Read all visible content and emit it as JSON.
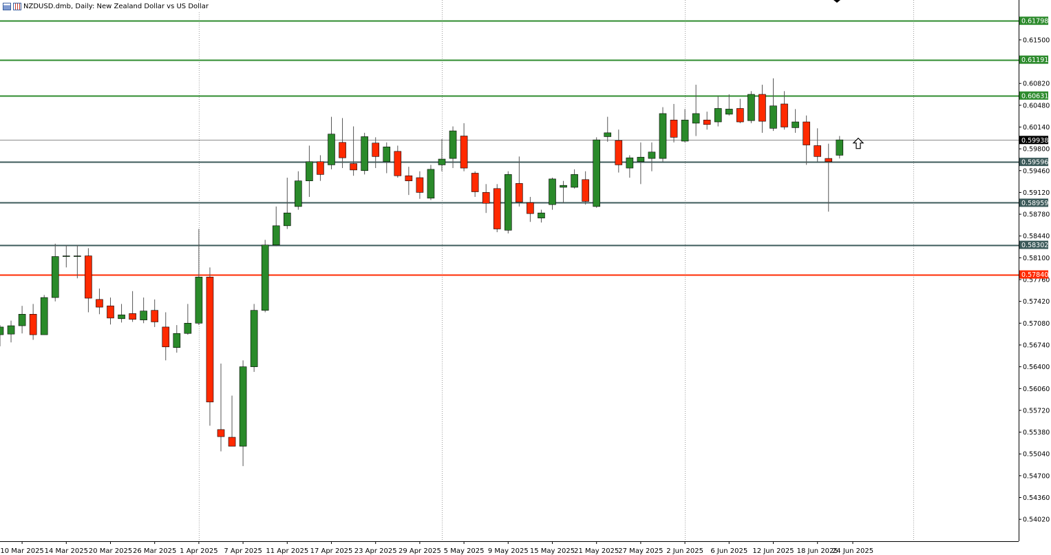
{
  "title": {
    "symbol_icon": "chart-window-icon",
    "symbol_icon2": "chart-bars-icon",
    "text": "NZDUSD.dmb, Daily:  New Zealand Dollar vs US Dollar"
  },
  "chart_data": {
    "type": "candlestick",
    "title": "NZDUSD.dmb, Daily:  New Zealand Dollar vs US Dollar",
    "ylim": [
      0.5385,
      0.6195
    ],
    "grid": "vertical dotted",
    "y_ticks": [
      "0.61798",
      "0.61500",
      "0.61191",
      "0.60820",
      "0.60631",
      "0.60480",
      "0.60140",
      "0.59938",
      "0.59800",
      "0.59596",
      "0.59460",
      "0.59120",
      "0.58959",
      "0.58780",
      "0.58440",
      "0.58302",
      "0.58100",
      "0.57840",
      "0.57760",
      "0.57420",
      "0.57080",
      "0.56740",
      "0.56400",
      "0.56060",
      "0.55720",
      "0.55380",
      "0.55040",
      "0.54700",
      "0.54360",
      "0.54020"
    ],
    "x_labels": [
      "10 Mar 2025",
      "14 Mar 2025",
      "20 Mar 2025",
      "26 Mar 2025",
      "1 Apr 2025",
      "7 Apr 2025",
      "11 Apr 2025",
      "17 Apr 2025",
      "23 Apr 2025",
      "29 Apr 2025",
      "5 May 2025",
      "9 May 2025",
      "15 May 2025",
      "21 May 2025",
      "27 May 2025",
      "2 Jun 2025",
      "6 Jun 2025",
      "12 Jun 2025",
      "18 Jun 2025",
      "24 Jun 2025"
    ],
    "period_separators": [
      "1 Apr 2025",
      "1 May 2025",
      "2 Jun 2025",
      "1 Jul 2025"
    ],
    "current_price": {
      "value": 0.59938,
      "label": "0.59938",
      "color": "#000000"
    },
    "levels": [
      {
        "value": 0.61798,
        "label": "0.61798",
        "color": "#2e8b2e"
      },
      {
        "value": 0.61191,
        "label": "0.61191",
        "color": "#2e8b2e"
      },
      {
        "value": 0.60631,
        "label": "0.60631",
        "color": "#2e8b2e"
      },
      {
        "value": 0.59596,
        "label": "0.59596",
        "color": "#3c5a5a"
      },
      {
        "value": 0.58959,
        "label": "0.58959",
        "color": "#3c5a5a"
      },
      {
        "value": 0.58302,
        "label": "0.58302",
        "color": "#3c5a5a"
      },
      {
        "value": 0.5784,
        "label": "0.57840",
        "color": "#ff2a00"
      }
    ],
    "bull_color": "#2a8a2a",
    "bear_color": "#ff2a00",
    "candles": [
      {
        "d": "6 Mar 2025",
        "o": 0.569,
        "h": 0.5705,
        "l": 0.5672,
        "c": 0.5702
      },
      {
        "d": "7 Mar 2025",
        "o": 0.5691,
        "h": 0.5712,
        "l": 0.5678,
        "c": 0.5704
      },
      {
        "d": "10 Mar 2025",
        "o": 0.5704,
        "h": 0.5735,
        "l": 0.5692,
        "c": 0.5722
      },
      {
        "d": "11 Mar 2025",
        "o": 0.5722,
        "h": 0.5738,
        "l": 0.5682,
        "c": 0.569
      },
      {
        "d": "12 Mar 2025",
        "o": 0.569,
        "h": 0.5752,
        "l": 0.569,
        "c": 0.5748
      },
      {
        "d": "13 Mar 2025",
        "o": 0.5748,
        "h": 0.5832,
        "l": 0.5742,
        "c": 0.5812
      },
      {
        "d": "14 Mar 2025",
        "o": 0.5812,
        "h": 0.583,
        "l": 0.5795,
        "c": 0.5813
      },
      {
        "d": "17 Mar 2025",
        "o": 0.5812,
        "h": 0.583,
        "l": 0.5778,
        "c": 0.5813
      },
      {
        "d": "18 Mar 2025",
        "o": 0.5813,
        "h": 0.5825,
        "l": 0.5725,
        "c": 0.5747
      },
      {
        "d": "19 Mar 2025",
        "o": 0.5745,
        "h": 0.5762,
        "l": 0.5722,
        "c": 0.5733
      },
      {
        "d": "20 Mar 2025",
        "o": 0.5735,
        "h": 0.5748,
        "l": 0.5706,
        "c": 0.5716
      },
      {
        "d": "21 Mar 2025",
        "o": 0.5715,
        "h": 0.5738,
        "l": 0.5709,
        "c": 0.5721
      },
      {
        "d": "24 Mar 2025",
        "o": 0.5723,
        "h": 0.5758,
        "l": 0.571,
        "c": 0.5714
      },
      {
        "d": "25 Mar 2025",
        "o": 0.5713,
        "h": 0.5748,
        "l": 0.5708,
        "c": 0.5727
      },
      {
        "d": "26 Mar 2025",
        "o": 0.5728,
        "h": 0.5745,
        "l": 0.5702,
        "c": 0.571
      },
      {
        "d": "27 Mar 2025",
        "o": 0.5702,
        "h": 0.5725,
        "l": 0.565,
        "c": 0.5671
      },
      {
        "d": "28 Mar 2025",
        "o": 0.567,
        "h": 0.5705,
        "l": 0.5662,
        "c": 0.5692
      },
      {
        "d": "31 Mar 2025",
        "o": 0.5692,
        "h": 0.5738,
        "l": 0.569,
        "c": 0.5708
      },
      {
        "d": "1 Apr 2025",
        "o": 0.5708,
        "h": 0.5855,
        "l": 0.5705,
        "c": 0.578
      },
      {
        "d": "2 Apr 2025",
        "o": 0.578,
        "h": 0.5795,
        "l": 0.5548,
        "c": 0.5585
      },
      {
        "d": "3 Apr 2025",
        "o": 0.5542,
        "h": 0.5645,
        "l": 0.5508,
        "c": 0.5531
      },
      {
        "d": "4 Apr 2025",
        "o": 0.553,
        "h": 0.5595,
        "l": 0.5518,
        "c": 0.5516
      },
      {
        "d": "7 Apr 2025",
        "o": 0.5516,
        "h": 0.565,
        "l": 0.5485,
        "c": 0.564
      },
      {
        "d": "8 Apr 2025",
        "o": 0.564,
        "h": 0.5738,
        "l": 0.5632,
        "c": 0.5728
      },
      {
        "d": "9 Apr 2025",
        "o": 0.5728,
        "h": 0.5838,
        "l": 0.5725,
        "c": 0.583
      },
      {
        "d": "10 Apr 2025",
        "o": 0.583,
        "h": 0.589,
        "l": 0.5828,
        "c": 0.586
      },
      {
        "d": "11 Apr 2025",
        "o": 0.586,
        "h": 0.5935,
        "l": 0.5855,
        "c": 0.588
      },
      {
        "d": "14 Apr 2025",
        "o": 0.589,
        "h": 0.5945,
        "l": 0.5885,
        "c": 0.593
      },
      {
        "d": "15 Apr 2025",
        "o": 0.593,
        "h": 0.5985,
        "l": 0.5905,
        "c": 0.596
      },
      {
        "d": "16 Apr 2025",
        "o": 0.596,
        "h": 0.597,
        "l": 0.593,
        "c": 0.594
      },
      {
        "d": "17 Apr 2025",
        "o": 0.5955,
        "h": 0.603,
        "l": 0.5948,
        "c": 0.6003
      },
      {
        "d": "18 Apr 2025",
        "o": 0.599,
        "h": 0.6028,
        "l": 0.595,
        "c": 0.5966
      },
      {
        "d": "21 Apr 2025",
        "o": 0.5957,
        "h": 0.6015,
        "l": 0.5938,
        "c": 0.5947
      },
      {
        "d": "22 Apr 2025",
        "o": 0.5946,
        "h": 0.6005,
        "l": 0.594,
        "c": 0.5999
      },
      {
        "d": "23 Apr 2025",
        "o": 0.5989,
        "h": 0.5998,
        "l": 0.595,
        "c": 0.5968
      },
      {
        "d": "24 Apr 2025",
        "o": 0.596,
        "h": 0.599,
        "l": 0.5942,
        "c": 0.5983
      },
      {
        "d": "25 Apr 2025",
        "o": 0.5976,
        "h": 0.5985,
        "l": 0.5935,
        "c": 0.5938
      },
      {
        "d": "28 Apr 2025",
        "o": 0.5938,
        "h": 0.5952,
        "l": 0.5908,
        "c": 0.593
      },
      {
        "d": "29 Apr 2025",
        "o": 0.5935,
        "h": 0.5945,
        "l": 0.5902,
        "c": 0.5912
      },
      {
        "d": "30 Apr 2025",
        "o": 0.5903,
        "h": 0.5955,
        "l": 0.59,
        "c": 0.5948
      },
      {
        "d": "1 May 2025",
        "o": 0.5955,
        "h": 0.5995,
        "l": 0.5945,
        "c": 0.5964
      },
      {
        "d": "2 May 2025",
        "o": 0.5965,
        "h": 0.6015,
        "l": 0.595,
        "c": 0.6008
      },
      {
        "d": "5 May 2025",
        "o": 0.6,
        "h": 0.602,
        "l": 0.5945,
        "c": 0.595
      },
      {
        "d": "6 May 2025",
        "o": 0.5942,
        "h": 0.5945,
        "l": 0.5905,
        "c": 0.5913
      },
      {
        "d": "7 May 2025",
        "o": 0.5912,
        "h": 0.5925,
        "l": 0.588,
        "c": 0.5895
      },
      {
        "d": "8 May 2025",
        "o": 0.5918,
        "h": 0.5925,
        "l": 0.585,
        "c": 0.5855
      },
      {
        "d": "9 May 2025",
        "o": 0.5853,
        "h": 0.5945,
        "l": 0.5848,
        "c": 0.594
      },
      {
        "d": "12 May 2025",
        "o": 0.5926,
        "h": 0.5968,
        "l": 0.589,
        "c": 0.5897
      },
      {
        "d": "13 May 2025",
        "o": 0.5896,
        "h": 0.5905,
        "l": 0.5866,
        "c": 0.5879
      },
      {
        "d": "14 May 2025",
        "o": 0.5872,
        "h": 0.5885,
        "l": 0.5865,
        "c": 0.588
      },
      {
        "d": "15 May 2025",
        "o": 0.5893,
        "h": 0.5935,
        "l": 0.5885,
        "c": 0.5933
      },
      {
        "d": "16 May 2025",
        "o": 0.592,
        "h": 0.593,
        "l": 0.5895,
        "c": 0.5923
      },
      {
        "d": "19 May 2025",
        "o": 0.592,
        "h": 0.5948,
        "l": 0.5918,
        "c": 0.594
      },
      {
        "d": "20 May 2025",
        "o": 0.5932,
        "h": 0.5945,
        "l": 0.5893,
        "c": 0.5898
      },
      {
        "d": "21 May 2025",
        "o": 0.589,
        "h": 0.5998,
        "l": 0.5888,
        "c": 0.5994
      },
      {
        "d": "22 May 2025",
        "o": 0.5999,
        "h": 0.603,
        "l": 0.5991,
        "c": 0.6005
      },
      {
        "d": "23 May 2025",
        "o": 0.5993,
        "h": 0.601,
        "l": 0.5943,
        "c": 0.5955
      },
      {
        "d": "26 May 2025",
        "o": 0.595,
        "h": 0.597,
        "l": 0.5935,
        "c": 0.5966
      },
      {
        "d": "27 May 2025",
        "o": 0.596,
        "h": 0.599,
        "l": 0.5925,
        "c": 0.5967
      },
      {
        "d": "28 May 2025",
        "o": 0.5965,
        "h": 0.599,
        "l": 0.5945,
        "c": 0.5975
      },
      {
        "d": "29 May 2025",
        "o": 0.5965,
        "h": 0.6045,
        "l": 0.596,
        "c": 0.6035
      },
      {
        "d": "30 May 2025",
        "o": 0.6025,
        "h": 0.605,
        "l": 0.599,
        "c": 0.5998
      },
      {
        "d": "2 Jun 2025",
        "o": 0.5992,
        "h": 0.6042,
        "l": 0.599,
        "c": 0.6025
      },
      {
        "d": "3 Jun 2025",
        "o": 0.602,
        "h": 0.608,
        "l": 0.6,
        "c": 0.6035
      },
      {
        "d": "4 Jun 2025",
        "o": 0.6025,
        "h": 0.6038,
        "l": 0.601,
        "c": 0.6018
      },
      {
        "d": "5 Jun 2025",
        "o": 0.6022,
        "h": 0.6062,
        "l": 0.6015,
        "c": 0.6043
      },
      {
        "d": "6 Jun 2025",
        "o": 0.6034,
        "h": 0.6065,
        "l": 0.6032,
        "c": 0.6042
      },
      {
        "d": "9 Jun 2025",
        "o": 0.6043,
        "h": 0.6058,
        "l": 0.602,
        "c": 0.6022
      },
      {
        "d": "10 Jun 2025",
        "o": 0.6024,
        "h": 0.607,
        "l": 0.602,
        "c": 0.6065
      },
      {
        "d": "11 Jun 2025",
        "o": 0.6065,
        "h": 0.608,
        "l": 0.6005,
        "c": 0.6023
      },
      {
        "d": "12 Jun 2025",
        "o": 0.6012,
        "h": 0.609,
        "l": 0.6008,
        "c": 0.6047
      },
      {
        "d": "13 Jun 2025",
        "o": 0.605,
        "h": 0.607,
        "l": 0.601,
        "c": 0.6014
      },
      {
        "d": "16 Jun 2025",
        "o": 0.6013,
        "h": 0.6042,
        "l": 0.6005,
        "c": 0.6022
      },
      {
        "d": "17 Jun 2025",
        "o": 0.6022,
        "h": 0.6032,
        "l": 0.5955,
        "c": 0.5986
      },
      {
        "d": "18 Jun 2025",
        "o": 0.5985,
        "h": 0.6012,
        "l": 0.596,
        "c": 0.5968
      },
      {
        "d": "19 Jun 2025",
        "o": 0.5965,
        "h": 0.5988,
        "l": 0.5882,
        "c": 0.596
      },
      {
        "d": "20 Jun 2025",
        "o": 0.597,
        "h": 0.6,
        "l": 0.5965,
        "c": 0.5994
      }
    ],
    "arrow_icon": "up-arrow-icon"
  }
}
